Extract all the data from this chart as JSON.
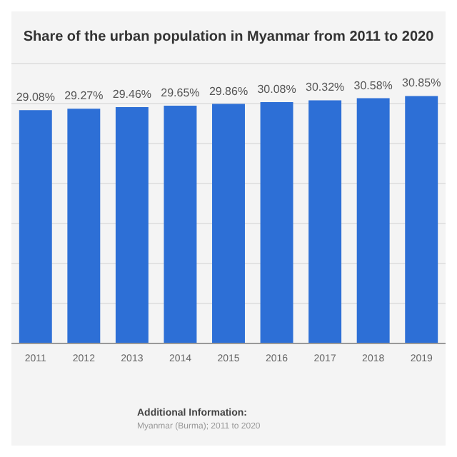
{
  "chart_data": {
    "type": "bar",
    "title": "Share of the urban population in Myanmar from 2011 to 2020",
    "categories": [
      "2011",
      "2012",
      "2013",
      "2014",
      "2015",
      "2016",
      "2017",
      "2018",
      "2019"
    ],
    "values": [
      29.08,
      29.27,
      29.46,
      29.65,
      29.86,
      30.08,
      30.32,
      30.58,
      30.85
    ],
    "value_labels": [
      "29.08%",
      "29.27%",
      "29.46%",
      "29.65%",
      "29.86%",
      "30.08%",
      "30.32%",
      "30.58%",
      "30.85%"
    ],
    "color": "#2d6fd6",
    "ylim": [
      0,
      35
    ],
    "yticks": [
      {
        "value": 0,
        "label": null
      },
      {
        "value": 5,
        "label": null
      },
      {
        "value": 10,
        "label": null
      },
      {
        "value": 15,
        "label": null
      },
      {
        "value": 20,
        "label": null
      },
      {
        "value": 25,
        "label": null
      },
      {
        "value": 30,
        "label": null
      },
      {
        "value": 35,
        "label": null
      }
    ],
    "grid": "y",
    "tick_labels": "x",
    "annotations": [
      "Additional Information:",
      "Myanmar (Burma); 2011 to 2020"
    ]
  }
}
